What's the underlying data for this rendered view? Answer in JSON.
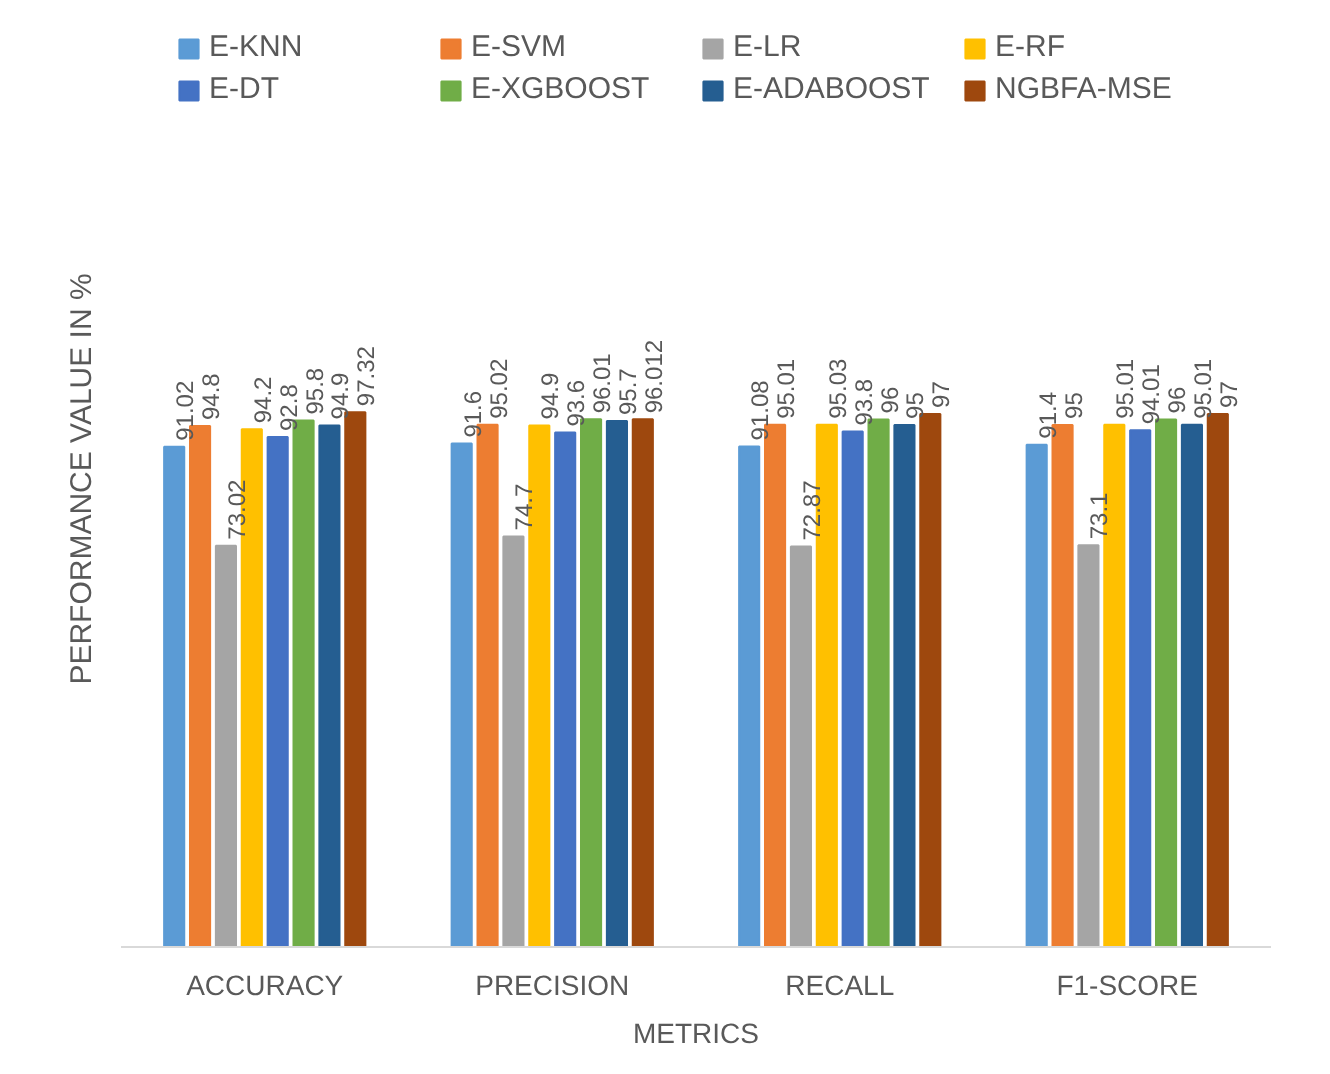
{
  "chart_data": {
    "type": "bar",
    "xlabel": "METRICS",
    "ylabel": "PERFORMANCE VALUE IN %",
    "categories": [
      "ACCURACY",
      "PRECISION",
      "RECALL",
      "F1-SCORE"
    ],
    "data_labels": true,
    "legend": "top",
    "series": [
      {
        "name": "E-KNN",
        "color": "#5b9bd5",
        "values": [
          91.02,
          91.6,
          91.08,
          91.4
        ]
      },
      {
        "name": "E-SVM",
        "color": "#ed7d31",
        "values": [
          94.8,
          95.02,
          95.01,
          95
        ]
      },
      {
        "name": "E-LR",
        "color": "#a5a5a5",
        "values": [
          73.02,
          74.7,
          72.87,
          73.1
        ]
      },
      {
        "name": "E-RF",
        "color": "#ffc000",
        "values": [
          94.2,
          94.9,
          95.03,
          95.01
        ]
      },
      {
        "name": "E-DT",
        "color": "#4472c4",
        "values": [
          92.8,
          93.6,
          93.8,
          94.01
        ]
      },
      {
        "name": "E-XGBOOST",
        "color": "#70ad47",
        "values": [
          95.8,
          96.01,
          96,
          96
        ]
      },
      {
        "name": "E-ADABOOST",
        "color": "#255e91",
        "values": [
          94.9,
          95.7,
          95,
          95.01
        ]
      },
      {
        "name": "NGBFA-MSE",
        "color": "#9e480e",
        "values": [
          97.32,
          96.012,
          97,
          97
        ]
      }
    ]
  }
}
